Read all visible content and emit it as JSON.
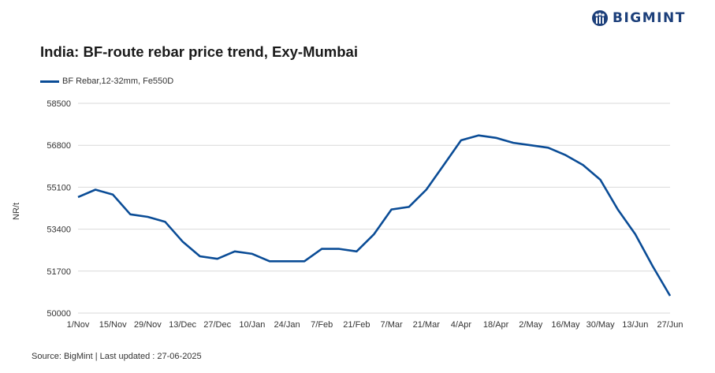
{
  "brand": {
    "name": "BIGMINT",
    "logo_icon": "bigmint-logo-icon",
    "color": "#1c3f7a"
  },
  "source": "Source: BigMint | Last updated : 27-06-2025",
  "chart_data": {
    "type": "line",
    "title": "India: BF-route rebar price trend, Exy-Mumbai",
    "ylabel": "NR/t",
    "xlabel": "",
    "ylim": [
      50000,
      58500
    ],
    "yticks": [
      "58500",
      "56800",
      "55100",
      "53400",
      "51700",
      "50000"
    ],
    "ytick_values": [
      58500,
      56800,
      55100,
      53400,
      51700,
      50000
    ],
    "xticks": [
      "1/Nov",
      "15/Nov",
      "29/Nov",
      "13/Dec",
      "27/Dec",
      "10/Jan",
      "24/Jan",
      "7/Feb",
      "21/Feb",
      "7/Mar",
      "21/Mar",
      "4/Apr",
      "18/Apr",
      "2/May",
      "16/May",
      "30/May",
      "13/Jun",
      "27/Jun"
    ],
    "grid": true,
    "legend_position": "top-left",
    "series": [
      {
        "name": "BF Rebar,12-32mm, Fe550D",
        "color": "#0a4c96",
        "values": [
          54700,
          55000,
          54800,
          54000,
          53900,
          53700,
          52900,
          52300,
          52200,
          52500,
          52400,
          52100,
          52100,
          52100,
          52600,
          52600,
          52500,
          53200,
          54200,
          54300,
          55000,
          56000,
          57000,
          57200,
          57100,
          56900,
          56800,
          56700,
          56400,
          56000,
          55400,
          54200,
          53200,
          51900,
          50700
        ]
      }
    ]
  }
}
